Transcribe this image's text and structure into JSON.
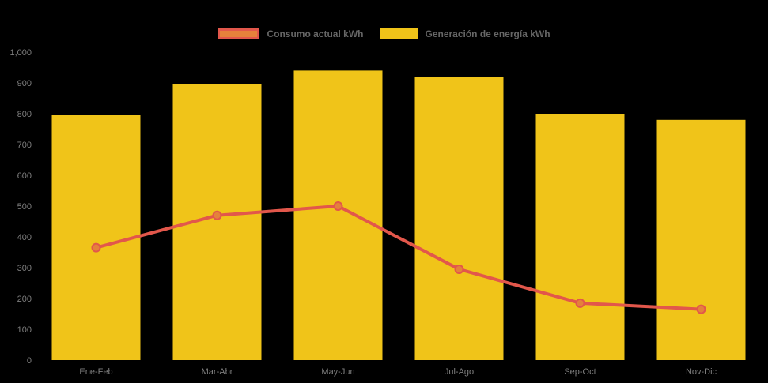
{
  "chart": {
    "background": "#000000",
    "legend": {
      "position": "top",
      "text_color": "#666666",
      "items": [
        {
          "label": "Consumo actual kWh",
          "swatch_fill": "#e5813b",
          "swatch_border": "#e2574b"
        },
        {
          "label": "Generación de energía kWh",
          "swatch_fill": "#f0c419",
          "swatch_border": "#f0c419"
        }
      ]
    }
  },
  "chart_data": {
    "type": "bar",
    "title": "",
    "xlabel": "",
    "ylabel": "",
    "categories": [
      "Ene-Feb",
      "Mar-Abr",
      "May-Jun",
      "Jul-Ago",
      "Sep-Oct",
      "Nov-Dic"
    ],
    "series": [
      {
        "name": "Consumo actual kWh",
        "type": "line",
        "color": "#e2574b",
        "marker_fill": "#e5813b",
        "marker_border": "#e2574b",
        "values": [
          365,
          470,
          500,
          295,
          185,
          165
        ]
      },
      {
        "name": "Generación de energía kWh",
        "type": "bar",
        "color": "#f0c419",
        "values": [
          795,
          895,
          940,
          920,
          800,
          780
        ]
      }
    ],
    "ylim": [
      0,
      1000
    ],
    "ytick_step": 100,
    "ytick_labels": [
      "0",
      "100",
      "200",
      "300",
      "400",
      "500",
      "600",
      "700",
      "800",
      "900",
      "1,000"
    ],
    "axis_text_color": "#7f7f7f",
    "grid": false,
    "legend_position": "top"
  }
}
